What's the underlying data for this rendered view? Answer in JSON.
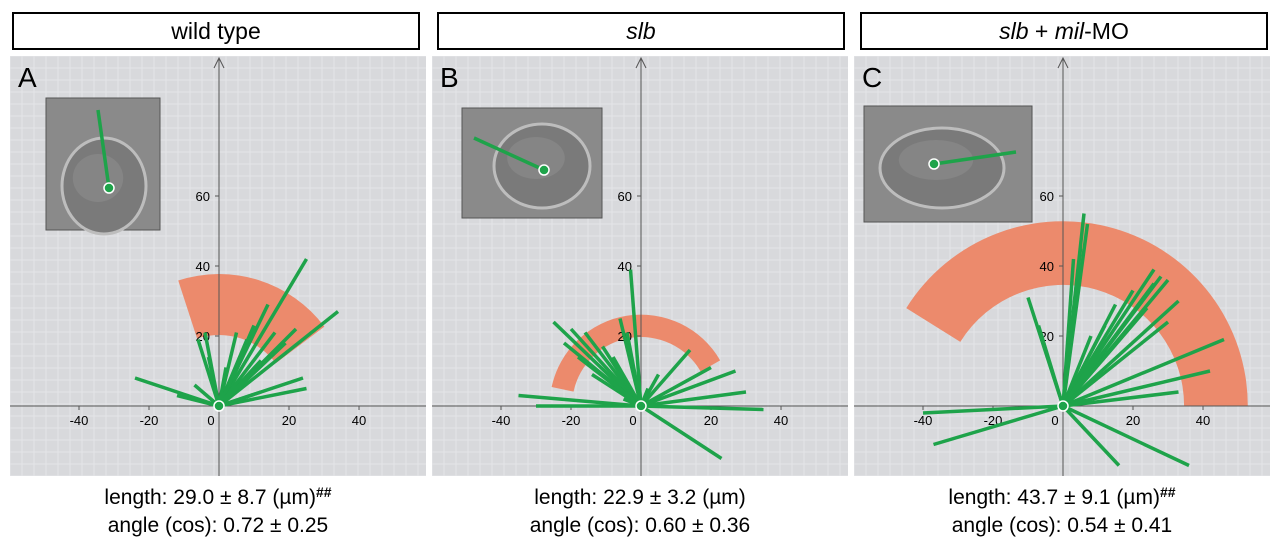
{
  "panels": [
    {
      "letter": "A",
      "header": {
        "italic": "",
        "plain": "wild type"
      },
      "caption": {
        "length_text": "length: 29.0 ± 8.7 (µm)",
        "sup": "##",
        "angle_text": "angle (cos): 0.72 ± 0.25"
      },
      "chart_data": {
        "type": "polar-rose",
        "x_ticks": [
          -40,
          -20,
          0,
          20,
          40
        ],
        "y_ticks": [
          20,
          40,
          60
        ],
        "mean_length": 29.0,
        "sd_length": 8.7,
        "sector_angle_deg": [
          37,
          108
        ],
        "segments": [
          [
            25,
            42
          ],
          [
            34,
            27
          ],
          [
            14,
            29
          ],
          [
            10,
            23
          ],
          [
            8,
            19
          ],
          [
            5,
            21
          ],
          [
            -4,
            21
          ],
          [
            -6,
            19
          ],
          [
            -3,
            14
          ],
          [
            2,
            11
          ],
          [
            19,
            18
          ],
          [
            24,
            8
          ],
          [
            25,
            5
          ],
          [
            12,
            4
          ],
          [
            -24,
            8
          ],
          [
            -12,
            3
          ],
          [
            -7,
            6
          ],
          [
            6,
            13
          ],
          [
            12,
            13
          ],
          [
            16,
            21
          ],
          [
            22,
            22
          ]
        ]
      },
      "inset": {
        "fill": "#8a8a8a"
      }
    },
    {
      "letter": "B",
      "header": {
        "italic": "slb",
        "plain": ""
      },
      "caption": {
        "length_text": "length: 22.9 ± 3.2 (µm)",
        "sup": "",
        "angle_text": "angle (cos): 0.60 ± 0.36"
      },
      "chart_data": {
        "type": "polar-rose",
        "x_ticks": [
          -40,
          -20,
          0,
          20,
          40
        ],
        "y_ticks": [
          20,
          40,
          60
        ],
        "mean_length": 22.9,
        "sd_length": 3.2,
        "sector_angle_deg": [
          30,
          168
        ],
        "segments": [
          [
            -3,
            39
          ],
          [
            -25,
            24
          ],
          [
            -20,
            22
          ],
          [
            -16,
            21
          ],
          [
            -11,
            17
          ],
          [
            -18,
            14
          ],
          [
            -8,
            14
          ],
          [
            -14,
            9
          ],
          [
            -6,
            25
          ],
          [
            -22,
            18
          ],
          [
            -35,
            3
          ],
          [
            -30,
            0
          ],
          [
            -5,
            2
          ],
          [
            2,
            5
          ],
          [
            5,
            9
          ],
          [
            14,
            16
          ],
          [
            20,
            11
          ],
          [
            27,
            10
          ],
          [
            30,
            4
          ],
          [
            35,
            -1
          ],
          [
            23,
            -15
          ],
          [
            -4,
            21
          ]
        ]
      },
      "inset": {
        "fill": "#8a8a8a"
      }
    },
    {
      "letter": "C",
      "header": {
        "italic": "slb",
        "plain": " + mil-MO"
      },
      "caption": {
        "length_text": "length: 43.7 ± 9.1 (µm)",
        "sup": "##",
        "angle_text": "angle (cos): 0.54 ± 0.41"
      },
      "chart_data": {
        "type": "polar-rose",
        "x_ticks": [
          -40,
          -20,
          0,
          20,
          40
        ],
        "y_ticks": [
          20,
          40,
          60
        ],
        "mean_length": 43.7,
        "sd_length": 9.1,
        "sector_angle_deg": [
          0,
          148
        ],
        "segments": [
          [
            6,
            55
          ],
          [
            7,
            52
          ],
          [
            3,
            42
          ],
          [
            5,
            45
          ],
          [
            28,
            37
          ],
          [
            30,
            36
          ],
          [
            26,
            35
          ],
          [
            20,
            33
          ],
          [
            15,
            29
          ],
          [
            24,
            28
          ],
          [
            12,
            23
          ],
          [
            8,
            20
          ],
          [
            30,
            24
          ],
          [
            33,
            30
          ],
          [
            46,
            19
          ],
          [
            42,
            10
          ],
          [
            33,
            4
          ],
          [
            -10,
            31
          ],
          [
            -7,
            23
          ],
          [
            -40,
            -2
          ],
          [
            -37,
            -11
          ],
          [
            16,
            -17
          ],
          [
            36,
            -17
          ],
          [
            26,
            39
          ],
          [
            10,
            15
          ]
        ]
      },
      "inset": {
        "fill": "#8a8a8a"
      }
    }
  ]
}
